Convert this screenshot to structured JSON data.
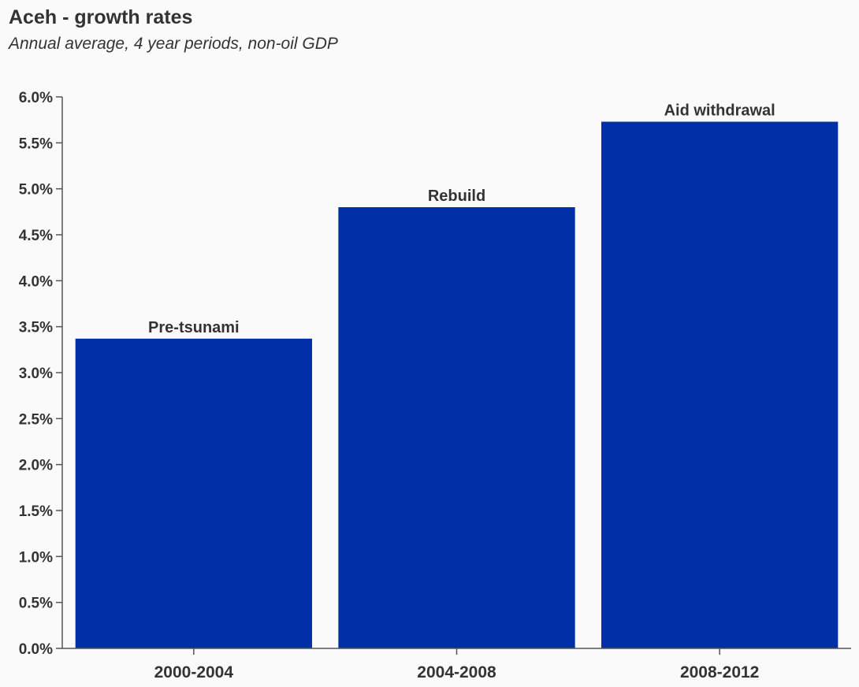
{
  "chart_data": {
    "type": "bar",
    "title": "Aceh - growth rates",
    "subtitle": "Annual average, 4 year periods, non-oil GDP",
    "categories": [
      "2000-2004",
      "2004-2008",
      "2008-2012"
    ],
    "values": [
      3.37,
      4.8,
      5.73
    ],
    "bar_labels": [
      "Pre-tsunami",
      "Rebuild",
      "Aid withdrawal"
    ],
    "xlabel": "",
    "ylabel": "",
    "ylim": [
      0,
      6.0
    ],
    "yticks": [
      0.0,
      0.5,
      1.0,
      1.5,
      2.0,
      2.5,
      3.0,
      3.5,
      4.0,
      4.5,
      5.0,
      5.5,
      6.0
    ],
    "ytick_labels": [
      "0.0%",
      "0.5%",
      "1.0%",
      "1.5%",
      "2.0%",
      "2.5%",
      "3.0%",
      "3.5%",
      "4.0%",
      "4.5%",
      "5.0%",
      "5.5%",
      "6.0%"
    ],
    "grid": false,
    "legend": "none",
    "colors": {
      "bar": "#002fa7",
      "axis": "#555555",
      "text": "#333333",
      "background": "#fafafa"
    }
  }
}
